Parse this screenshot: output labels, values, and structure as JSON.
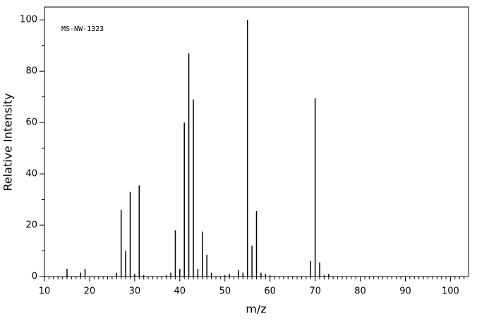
{
  "chart_data": {
    "type": "bar",
    "annotation": "MS-NW-1323",
    "x_label": "m/z",
    "y_label": "Relative Intensity",
    "color": "#000000",
    "x": [
      15,
      18,
      19,
      26,
      27,
      28,
      29,
      30,
      31,
      32,
      37,
      38,
      39,
      40,
      41,
      42,
      43,
      44,
      45,
      46,
      47,
      50,
      51,
      53,
      54,
      55,
      56,
      57,
      58,
      59,
      60,
      69,
      70,
      71,
      72,
      73
    ],
    "values": [
      3,
      1.5,
      3,
      1.5,
      26,
      10,
      33,
      1,
      35.5,
      0.5,
      0.5,
      1.5,
      18,
      3,
      60,
      87,
      69,
      3,
      17.5,
      8.5,
      1.5,
      0.5,
      1,
      2.5,
      1.5,
      100,
      12,
      25.5,
      1.5,
      1,
      0.5,
      6,
      69.5,
      5.5,
      0.5,
      1
    ],
    "xlim": [
      10,
      104
    ],
    "ylim": [
      0,
      105
    ],
    "xticks": [
      10,
      20,
      30,
      40,
      50,
      60,
      70,
      80,
      90,
      100
    ],
    "yticks": [
      0,
      20,
      40,
      60,
      80,
      100
    ],
    "xminorticks": [
      11,
      12,
      13,
      14,
      15,
      16,
      17,
      18,
      19,
      21,
      22,
      23,
      24,
      25,
      26,
      27,
      28,
      29,
      31,
      32,
      33,
      34,
      35,
      36,
      37,
      38,
      39,
      41,
      42,
      43,
      44,
      45,
      46,
      47,
      48,
      49,
      51,
      52,
      53,
      54,
      55,
      56,
      57,
      58,
      59,
      61,
      62,
      63,
      64,
      65,
      66,
      67,
      68,
      69,
      71,
      72,
      73,
      74,
      75,
      76,
      77,
      78,
      79,
      81,
      82,
      83,
      84,
      85,
      86,
      87,
      88,
      89,
      91,
      92,
      93,
      94,
      95,
      96,
      97,
      98,
      99,
      101,
      102,
      103
    ],
    "yminorticks": [
      10,
      30,
      50,
      70,
      90
    ]
  }
}
